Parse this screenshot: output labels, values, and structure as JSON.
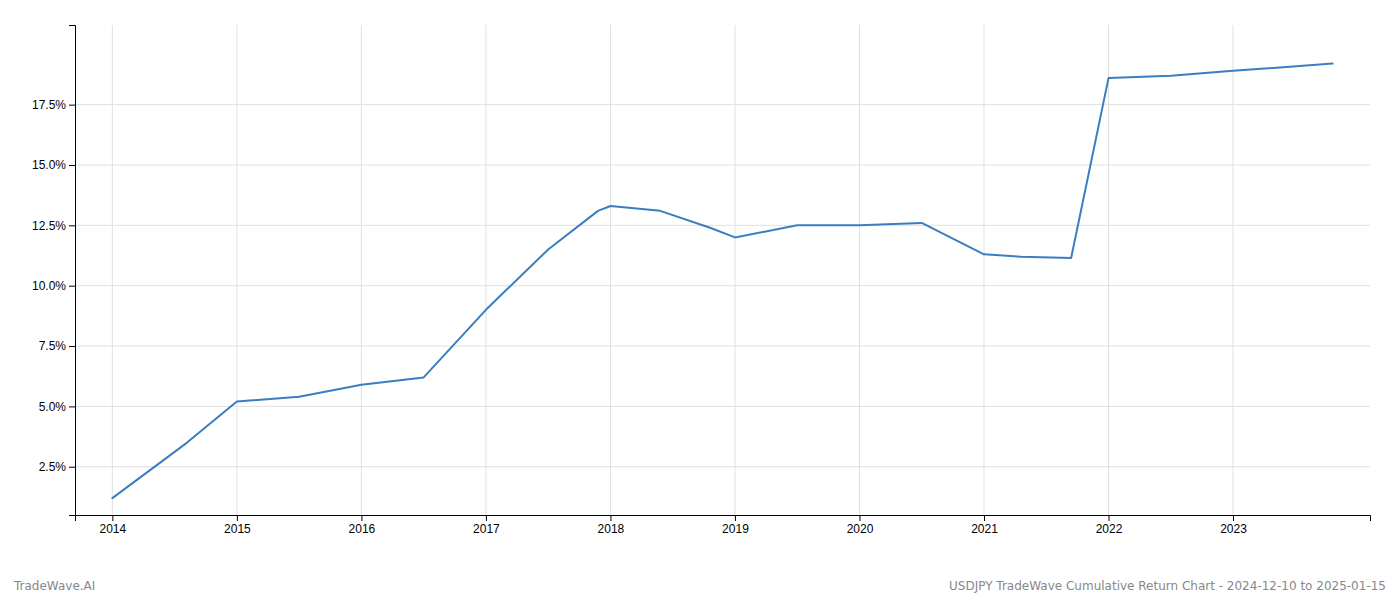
{
  "chart_data": {
    "type": "line",
    "x": [
      2014.0,
      2014.6,
      2015.0,
      2015.5,
      2016.0,
      2016.5,
      2017.0,
      2017.5,
      2017.9,
      2018.0,
      2018.4,
      2018.8,
      2019.0,
      2019.5,
      2020.0,
      2020.5,
      2021.0,
      2021.3,
      2021.7,
      2022.0,
      2022.5,
      2023.0,
      2023.8
    ],
    "values": [
      1.2,
      3.5,
      5.2,
      5.4,
      5.9,
      6.2,
      9.0,
      11.5,
      13.1,
      13.3,
      13.1,
      12.4,
      12.0,
      12.5,
      12.5,
      12.6,
      11.3,
      11.2,
      11.15,
      18.6,
      18.7,
      18.9,
      19.2
    ],
    "color": "#3a7ebf",
    "xlim": [
      2013.7,
      2024.1
    ],
    "xticks": [
      2014,
      2015,
      2016,
      2017,
      2018,
      2019,
      2020,
      2021,
      2022,
      2023
    ],
    "ylim": [
      0.5,
      20.8
    ],
    "yticks": [
      {
        "value": 2.5,
        "label": "2.5%"
      },
      {
        "value": 5.0,
        "label": "5.0%"
      },
      {
        "value": 7.5,
        "label": "7.5%"
      },
      {
        "value": 10.0,
        "label": "10.0%"
      },
      {
        "value": 12.5,
        "label": "12.5%"
      },
      {
        "value": 15.0,
        "label": "15.0%"
      },
      {
        "value": 17.5,
        "label": "17.5%"
      }
    ],
    "grid": true,
    "annotations": [
      "TradeWave.AI",
      "USDJPY TradeWave Cumulative Return Chart - 2024-12-10 to 2025-01-15"
    ]
  }
}
